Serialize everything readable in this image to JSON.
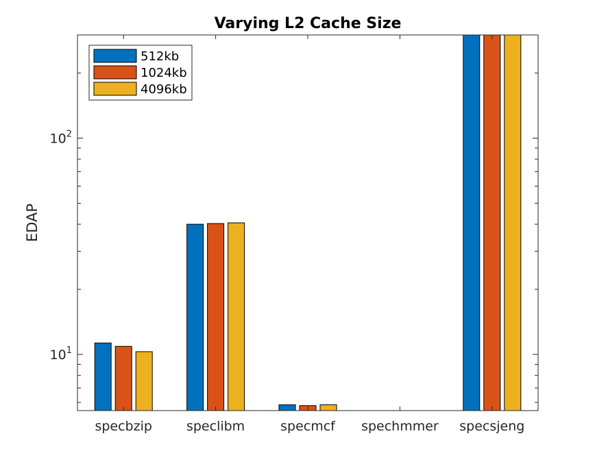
{
  "chart_data": {
    "type": "bar",
    "title": "Varying L2 Cache Size",
    "xlabel": "",
    "ylabel": "EDAP",
    "yscale": "log",
    "ylim": [
      5.5,
      300
    ],
    "y_ticks": [
      {
        "value": 10,
        "base": "10",
        "exp": "1"
      },
      {
        "value": 100,
        "base": "10",
        "exp": "2"
      }
    ],
    "categories": [
      "specbzip",
      "speclibm",
      "specmcf",
      "spechmmer",
      "specsjeng"
    ],
    "series": [
      {
        "name": "512kb",
        "color": "#0072BD",
        "values": [
          11.3,
          40.0,
          5.85,
          null,
          300
        ]
      },
      {
        "name": "1024kb",
        "color": "#D95319",
        "values": [
          10.9,
          40.3,
          5.8,
          null,
          300
        ]
      },
      {
        "name": "4096kb",
        "color": "#EDB120",
        "values": [
          10.3,
          40.6,
          5.85,
          null,
          300
        ]
      }
    ],
    "legend_position": "top-left",
    "grid": false
  }
}
